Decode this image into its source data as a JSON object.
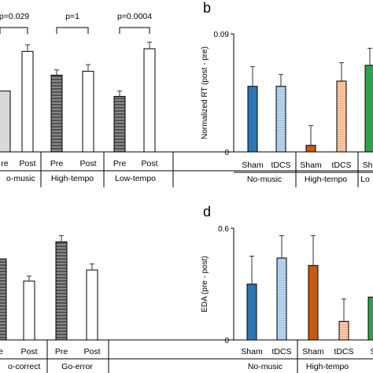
{
  "panel_labels": {
    "b": "b",
    "d": "d"
  },
  "colors": {
    "sham_nomusic": "#2e75b6",
    "tdcs_nomusic": "#9dc3e6",
    "sham_hightempo": "#c55a11",
    "tdcs_hightempo": "#f4b183",
    "sham_lowtempo": "#2ca34a",
    "pre_bar": "#595959",
    "post_bar": "#ffffff"
  },
  "chart_data": [
    {
      "panel": "top-left",
      "type": "bar",
      "ylim": [
        0,
        1
      ],
      "bars": [
        {
          "label": "Pre",
          "value": 0.46,
          "err": 0.0,
          "pattern": "light",
          "group": "No-music"
        },
        {
          "label": "Post",
          "value": 0.76,
          "err": 0.05,
          "pattern": "post",
          "group": "No-music"
        },
        {
          "label": "Pre",
          "value": 0.58,
          "err": 0.04,
          "pattern": "pre",
          "group": "High-tempo"
        },
        {
          "label": "Post",
          "value": 0.61,
          "err": 0.05,
          "pattern": "post",
          "group": "High-tempo"
        },
        {
          "label": "Pre",
          "value": 0.42,
          "err": 0.04,
          "pattern": "pre",
          "group": "Low-tempo"
        },
        {
          "label": "Post",
          "value": 0.78,
          "err": 0.05,
          "pattern": "post",
          "group": "Low-tempo"
        }
      ],
      "tick_labels": [
        "re",
        "Post",
        "Pre",
        "Post",
        "Pre",
        "Post"
      ],
      "group_labels": [
        "o-music",
        "High-tempo",
        "Low-tempo"
      ],
      "pvalues": [
        "p=0.029",
        "p=1",
        "p=0.0004"
      ]
    },
    {
      "panel": "b",
      "type": "bar",
      "ylabel": "Normalized RT (post - pre)",
      "ylim": [
        0,
        0.09
      ],
      "yticks": [
        "0",
        "0.09"
      ],
      "bars": [
        {
          "label": "Sham",
          "value": 0.05,
          "err": 0.015,
          "color": "sham_nomusic",
          "hatch": false,
          "group": "No-music"
        },
        {
          "label": "tDCS",
          "value": 0.05,
          "err": 0.009,
          "color": "tdcs_nomusic",
          "hatch": true,
          "group": "No-music"
        },
        {
          "label": "Sham",
          "value": 0.005,
          "err": 0.015,
          "color": "sham_hightempo",
          "hatch": false,
          "group": "High-tempo"
        },
        {
          "label": "tDCS",
          "value": 0.054,
          "err": 0.014,
          "color": "tdcs_hightempo",
          "hatch": true,
          "group": "High-tempo"
        },
        {
          "label": "Sha",
          "value": 0.066,
          "err": 0.013,
          "color": "sham_lowtempo",
          "hatch": false,
          "group": "Lo"
        }
      ],
      "group_labels": [
        "No-music",
        "High-tempo",
        "Lo"
      ]
    },
    {
      "panel": "bottom-left",
      "type": "bar",
      "ylim": [
        0,
        1
      ],
      "bars": [
        {
          "label": "e",
          "value": 0.66,
          "err": 0.0,
          "pattern": "pre",
          "group": "Go-correct"
        },
        {
          "label": "Post",
          "value": 0.48,
          "err": 0.04,
          "pattern": "post",
          "group": "Go-correct"
        },
        {
          "label": "Pre",
          "value": 0.8,
          "err": 0.05,
          "pattern": "pre",
          "group": "Go-error"
        },
        {
          "label": "Post",
          "value": 0.57,
          "err": 0.05,
          "pattern": "post",
          "group": "Go-error"
        }
      ],
      "tick_labels": [
        "e",
        "Post",
        "Pre",
        "Post"
      ],
      "group_labels": [
        "o-correct",
        "Go-error"
      ]
    },
    {
      "panel": "d",
      "type": "bar",
      "ylabel": "EDA (pre - post)",
      "ylim": [
        0,
        0.6
      ],
      "yticks": [
        "0",
        "0.6"
      ],
      "bars": [
        {
          "label": "Sham",
          "value": 0.3,
          "err": 0.15,
          "color": "sham_nomusic",
          "hatch": false,
          "group": "No-music"
        },
        {
          "label": "tDCS",
          "value": 0.44,
          "err": 0.12,
          "color": "tdcs_nomusic",
          "hatch": true,
          "group": "No-music"
        },
        {
          "label": "Sham",
          "value": 0.4,
          "err": 0.16,
          "color": "sham_hightempo",
          "hatch": false,
          "group": "High-tempo"
        },
        {
          "label": "tDCS",
          "value": 0.1,
          "err": 0.12,
          "color": "tdcs_hightempo",
          "hatch": true,
          "group": "High-tempo"
        },
        {
          "label": "S",
          "value": 0.23,
          "err": 0.0,
          "color": "sham_lowtempo",
          "hatch": false,
          "group": "Lo"
        }
      ],
      "group_labels": [
        "No-music",
        "High-tempo"
      ]
    }
  ]
}
